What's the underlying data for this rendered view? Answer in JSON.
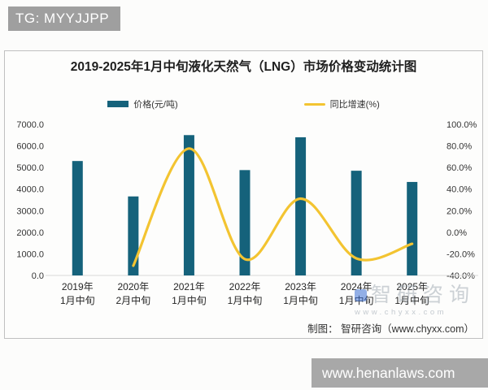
{
  "overlays": {
    "tg_banner": "TG: MYYJJPP",
    "site_banner": "www.henanlaws.com"
  },
  "chart": {
    "title": "2019-2025年1月中旬液化天然气（LNG）市场价格变动统计图",
    "credit": "制图： 智研咨询（www.chyxx.com）",
    "watermark": {
      "name": "智研咨询",
      "url": "www.chyxx.com"
    }
  },
  "chart_data": {
    "type": "bar+line",
    "title": "2019-2025年1月中旬液化天然气（LNG）市场价格变动统计图",
    "categories": [
      [
        "2019年",
        "1月中旬"
      ],
      [
        "2020年",
        "2月中旬"
      ],
      [
        "2021年",
        "1月中旬"
      ],
      [
        "2022年",
        "1月中旬"
      ],
      [
        "2023年",
        "1月中旬"
      ],
      [
        "2024年",
        "1月中旬"
      ],
      [
        "2025年",
        "1月中旬"
      ]
    ],
    "series": [
      {
        "name": "价格(元/吨)",
        "type": "bar",
        "axis": "left",
        "color": "#15627B",
        "values": [
          5300,
          3660,
          6500,
          4880,
          6400,
          4850,
          4330
        ]
      },
      {
        "name": "同比增速(%)",
        "type": "line",
        "axis": "right",
        "color": "#F3C431",
        "values": [
          null,
          -31.0,
          77.6,
          -24.9,
          31.1,
          -24.2,
          -10.7
        ]
      }
    ],
    "left_axis": {
      "min": 0,
      "max": 7000,
      "step": 1000,
      "decimals": 1,
      "suffix": ""
    },
    "right_axis": {
      "min": -40,
      "max": 100,
      "step": 20,
      "decimals": 1,
      "suffix": "%"
    },
    "grid": false,
    "legend_position": "top"
  }
}
